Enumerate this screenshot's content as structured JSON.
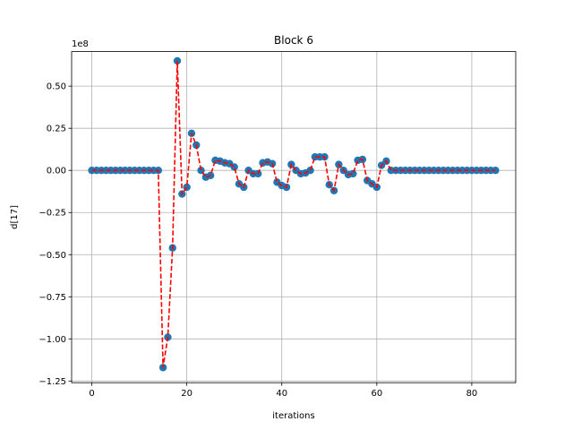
{
  "chart_data": {
    "type": "line",
    "title": "Block 6",
    "xlabel": "iterations",
    "ylabel": "d[17]",
    "offset_text": "1e8",
    "xlim": [
      -4.25,
      89.25
    ],
    "ylim": [
      -1.26,
      0.705
    ],
    "y_scale_factor": 100000000,
    "xticks": [
      0,
      20,
      40,
      60,
      80
    ],
    "xtick_labels": [
      "0",
      "20",
      "40",
      "60",
      "80"
    ],
    "yticks": [
      0.5,
      0.25,
      0.0,
      -0.25,
      -0.5,
      -0.75,
      -1.0,
      -1.25
    ],
    "ytick_labels": [
      "0.50",
      "0.25",
      "0.00",
      "−0.25",
      "−0.50",
      "−0.75",
      "−1.00",
      "−1.25"
    ],
    "grid": true,
    "marker_color": "#1f77b4",
    "line_color": "#ff0000",
    "line_style": "dashed",
    "series": [
      {
        "x": [
          0,
          1,
          2,
          3,
          4,
          5,
          6,
          7,
          8,
          9,
          10,
          11,
          12,
          13,
          14,
          15,
          16,
          17,
          18,
          19,
          20,
          21,
          22,
          23,
          24,
          25,
          26,
          27,
          28,
          29,
          30,
          31,
          32,
          33,
          34,
          35,
          36,
          37,
          38,
          39,
          40,
          41,
          42,
          43,
          44,
          45,
          46,
          47,
          48,
          49,
          50,
          51,
          52,
          53,
          54,
          55,
          56,
          57,
          58,
          59,
          60,
          61,
          62,
          63,
          64,
          65,
          66,
          67,
          68,
          69,
          70,
          71,
          72,
          73,
          74,
          75,
          76,
          77,
          78,
          79,
          80,
          81,
          82,
          83,
          84,
          85
        ],
        "y": [
          0,
          0,
          0,
          0,
          0,
          0,
          0,
          0,
          0,
          0,
          0,
          0,
          0,
          0,
          0,
          -1.17,
          -0.99,
          -0.46,
          0.65,
          -0.14,
          -0.1,
          0.22,
          0.15,
          0.0,
          -0.04,
          -0.03,
          0.06,
          0.055,
          0.045,
          0.04,
          0.02,
          -0.08,
          -0.1,
          0.0,
          -0.02,
          -0.02,
          0.045,
          0.05,
          0.04,
          -0.07,
          -0.09,
          -0.1,
          0.035,
          0.0,
          -0.02,
          -0.015,
          0.0,
          0.08,
          0.08,
          0.08,
          -0.085,
          -0.12,
          0.035,
          0.0,
          -0.025,
          -0.02,
          0.06,
          0.065,
          -0.06,
          -0.08,
          -0.1,
          0.03,
          0.055,
          0,
          0,
          0,
          0,
          0,
          0,
          0,
          0,
          0,
          0,
          0,
          0,
          0,
          0,
          0,
          0,
          0,
          0,
          0,
          0,
          0,
          0,
          0
        ]
      }
    ]
  }
}
